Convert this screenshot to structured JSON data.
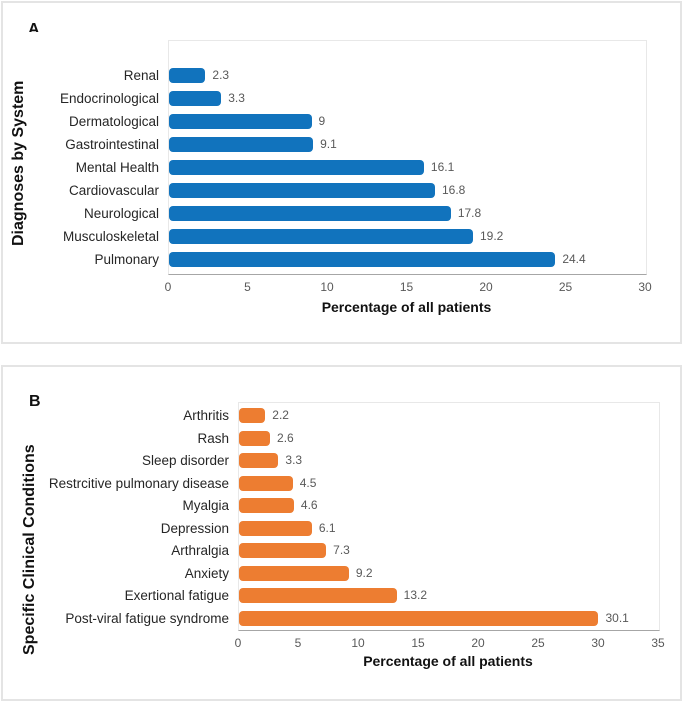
{
  "figure": {
    "background": "#FFFFFF",
    "panel_border_color": "#E4E4E4"
  },
  "colors": {
    "panel_a_bar": "#1173BD",
    "panel_b_bar": "#ED7D31",
    "tick_text": "#595959",
    "value_text": "#595959",
    "category_text": "#262626",
    "axis_line": "#A6A6A6",
    "plot_border": "#E8E8E8"
  },
  "chart_data": [
    {
      "type": "bar",
      "orientation": "horizontal",
      "panel_label": "A",
      "ylabel": "Diagnoses by System",
      "xlabel": "Percentage of all patients",
      "categories": [
        "Renal",
        "Endocrinological",
        "Dermatological",
        "Gastrointestinal",
        "Mental Health",
        "Cardiovascular",
        "Neurological",
        "Musculoskeletal",
        "Pulmonary"
      ],
      "values": [
        2.3,
        3.3,
        9,
        9.1,
        16.1,
        16.8,
        17.8,
        19.2,
        24.4
      ],
      "value_labels": [
        "2.3",
        "3.3",
        "9",
        "9.1",
        "16.1",
        "16.8",
        "17.8",
        "19.2",
        "24.4"
      ],
      "xlim": [
        0,
        30
      ],
      "xticks": [
        0,
        5,
        10,
        15,
        20,
        25,
        30
      ],
      "grid": false,
      "legend": "none",
      "bar_color": "#1173BD"
    },
    {
      "type": "bar",
      "orientation": "horizontal",
      "panel_label": "B",
      "ylabel": "Specific Clinical Conditions",
      "xlabel": "Percentage of all patients",
      "categories": [
        "Arthritis",
        "Rash",
        "Sleep disorder",
        "Restrcitive pulmonary disease",
        "Myalgia",
        "Depression",
        "Arthralgia",
        "Anxiety",
        "Exertional fatigue",
        "Post-viral fatigue syndrome"
      ],
      "values": [
        2.2,
        2.6,
        3.3,
        4.5,
        4.6,
        6.1,
        7.3,
        9.2,
        13.2,
        30.1
      ],
      "value_labels": [
        "2.2",
        "2.6",
        "3.3",
        "4.5",
        "4.6",
        "6.1",
        "7.3",
        "9.2",
        "13.2",
        "30.1"
      ],
      "xlim": [
        0,
        35
      ],
      "xticks": [
        0,
        5,
        10,
        15,
        20,
        25,
        30,
        35
      ],
      "grid": false,
      "legend": "none",
      "bar_color": "#ED7D31"
    }
  ]
}
